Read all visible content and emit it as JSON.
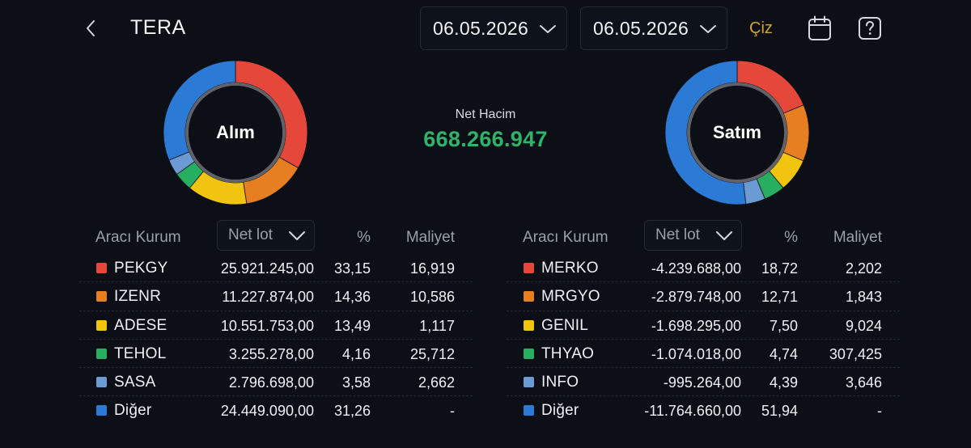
{
  "header": {
    "title": "TERA",
    "date_start": "06.05.2026",
    "date_end": "06.05.2026",
    "draw_label": "Çiz"
  },
  "icons": {
    "back": "chevron-left-icon",
    "date_dropdown": "chevron-down-icon",
    "calendar": "calendar-icon",
    "help": "help-icon"
  },
  "colors": {
    "red": "#e5483b",
    "orange": "#e67e22",
    "yellow": "#f1c40f",
    "green": "#27ae60",
    "light_blue": "#6b9bd2",
    "blue": "#2b7bd6",
    "net_value": "#2fb36a",
    "draw_button": "#d6a32a"
  },
  "net_volume": {
    "label": "Net Hacim",
    "value": "668.266.947"
  },
  "buy": {
    "donut_label": "Alım",
    "columns": {
      "broker": "Aracı Kurum",
      "metric": "Net lot",
      "pct": "%",
      "cost": "Maliyet"
    },
    "rows": [
      {
        "name": "PEKGY",
        "lot": "25.921.245,00",
        "pct": "33,15",
        "cost": "16,919",
        "color": "#e5483b",
        "share": 33.15
      },
      {
        "name": "IZENR",
        "lot": "11.227.874,00",
        "pct": "14,36",
        "cost": "10,586",
        "color": "#e67e22",
        "share": 14.36
      },
      {
        "name": "ADESE",
        "lot": "10.551.753,00",
        "pct": "13,49",
        "cost": "1,117",
        "color": "#f1c40f",
        "share": 13.49
      },
      {
        "name": "TEHOL",
        "lot": "3.255.278,00",
        "pct": "4,16",
        "cost": "25,712",
        "color": "#27ae60",
        "share": 4.16
      },
      {
        "name": "SASA",
        "lot": "2.796.698,00",
        "pct": "3,58",
        "cost": "2,662",
        "color": "#6b9bd2",
        "share": 3.58
      },
      {
        "name": "Diğer",
        "lot": "24.449.090,00",
        "pct": "31,26",
        "cost": "-",
        "color": "#2b7bd6",
        "share": 31.26
      }
    ]
  },
  "sell": {
    "donut_label": "Satım",
    "columns": {
      "broker": "Aracı Kurum",
      "metric": "Net lot",
      "pct": "%",
      "cost": "Maliyet"
    },
    "rows": [
      {
        "name": "MERKO",
        "lot": "-4.239.688,00",
        "pct": "18,72",
        "cost": "2,202",
        "color": "#e5483b",
        "share": 18.72
      },
      {
        "name": "MRGYO",
        "lot": "-2.879.748,00",
        "pct": "12,71",
        "cost": "1,843",
        "color": "#e67e22",
        "share": 12.71
      },
      {
        "name": "GENIL",
        "lot": "-1.698.295,00",
        "pct": "7,50",
        "cost": "9,024",
        "color": "#f1c40f",
        "share": 7.5
      },
      {
        "name": "THYAO",
        "lot": "-1.074.018,00",
        "pct": "4,74",
        "cost": "307,425",
        "color": "#27ae60",
        "share": 4.74
      },
      {
        "name": "INFO",
        "lot": "-995.264,00",
        "pct": "4,39",
        "cost": "3,646",
        "color": "#6b9bd2",
        "share": 4.39
      },
      {
        "name": "Diğer",
        "lot": "-11.764.660,00",
        "pct": "51,94",
        "cost": "-",
        "color": "#2b7bd6",
        "share": 51.94
      }
    ]
  }
}
